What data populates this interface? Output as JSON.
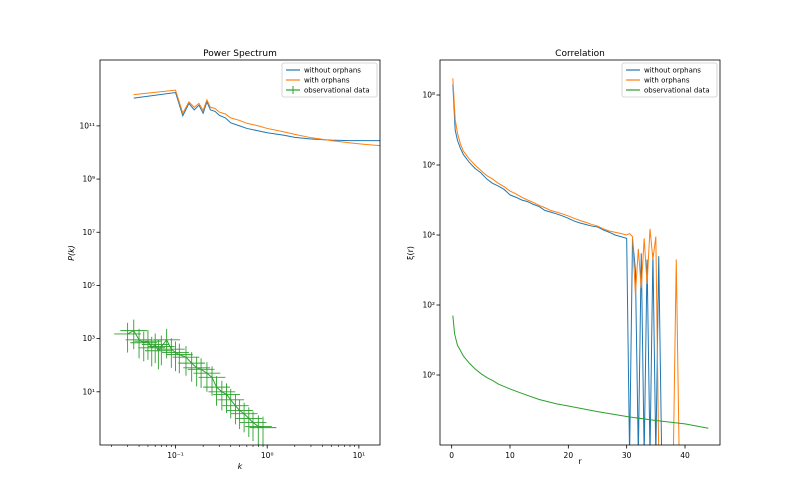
{
  "chart_data": [
    {
      "type": "line",
      "title": "Power Spectrum",
      "xlabel": "k",
      "ylabel": "P(k)",
      "xscale": "log",
      "yscale": "log",
      "xlim": [
        0.015,
        17
      ],
      "ylim": [
        0.1,
        30000000000000.0
      ],
      "x_ticks": [
        {
          "value": 0.1,
          "label": "10⁻¹"
        },
        {
          "value": 1,
          "label": "10⁰"
        },
        {
          "value": 10,
          "label": "10¹"
        }
      ],
      "y_ticks": [
        {
          "value": 10,
          "label": "10¹"
        },
        {
          "value": 1000,
          "label": "10³"
        },
        {
          "value": 100000,
          "label": "10⁵"
        },
        {
          "value": 10000000,
          "label": "10⁷"
        },
        {
          "value": 1000000000,
          "label": "10⁹"
        },
        {
          "value": 100000000000,
          "label": "10¹¹"
        }
      ],
      "legend": "top-right",
      "series": [
        {
          "name": "without orphans",
          "color": "#1f77b4",
          "x": [
            0.035,
            0.1,
            0.12,
            0.14,
            0.16,
            0.18,
            0.2,
            0.22,
            0.24,
            0.27,
            0.3,
            0.35,
            0.4,
            0.5,
            0.6,
            0.8,
            1,
            1.5,
            2,
            3,
            5,
            8,
            12,
            17
          ],
          "y": [
            1100000000000.0,
            1800000000000.0,
            240000000000.0,
            700000000000.0,
            400000000000.0,
            600000000000.0,
            300000000000.0,
            800000000000.0,
            400000000000.0,
            350000000000.0,
            250000000000.0,
            200000000000.0,
            130000000000.0,
            100000000000.0,
            80000000000.0,
            65000000000.0,
            55000000000.0,
            45000000000.0,
            37000000000.0,
            32000000000.0,
            29000000000.0,
            28000000000.0,
            28000000000.0,
            28000000000.0
          ]
        },
        {
          "name": "with orphans",
          "color": "#ff7f0e",
          "x": [
            0.035,
            0.1,
            0.12,
            0.14,
            0.16,
            0.18,
            0.2,
            0.22,
            0.24,
            0.27,
            0.3,
            0.35,
            0.4,
            0.5,
            0.6,
            0.8,
            1,
            1.5,
            2,
            3,
            5,
            8,
            12,
            17
          ],
          "y": [
            1500000000000.0,
            2200000000000.0,
            300000000000.0,
            800000000000.0,
            500000000000.0,
            700000000000.0,
            380000000000.0,
            950000000000.0,
            500000000000.0,
            450000000000.0,
            330000000000.0,
            280000000000.0,
            200000000000.0,
            160000000000.0,
            125000000000.0,
            100000000000.0,
            80000000000.0,
            60000000000.0,
            48000000000.0,
            36000000000.0,
            28000000000.0,
            23000000000.0,
            20000000000.0,
            18000000000.0
          ]
        },
        {
          "name": "observational data",
          "color": "#2ca02c",
          "errorbars": true,
          "x": [
            0.03,
            0.035,
            0.04,
            0.045,
            0.05,
            0.055,
            0.06,
            0.065,
            0.07,
            0.08,
            0.09,
            0.1,
            0.11,
            0.13,
            0.15,
            0.17,
            0.19,
            0.22,
            0.25,
            0.28,
            0.32,
            0.36,
            0.4,
            0.45,
            0.5,
            0.56,
            0.63,
            0.7,
            0.8,
            0.9
          ],
          "y": [
            1500,
            2000,
            900,
            700,
            800,
            450,
            600,
            350,
            500,
            900,
            400,
            300,
            250,
            200,
            120,
            80,
            70,
            50,
            35,
            15,
            10,
            8,
            5,
            3,
            2,
            1.5,
            1,
            0.7,
            0.5,
            0.45
          ],
          "xerr_rel": 0.4,
          "yerr_rel": 0.8
        }
      ]
    },
    {
      "type": "line",
      "title": "Correlation",
      "xlabel": "r",
      "ylabel": "ξ(r)",
      "xscale": "linear",
      "yscale": "log",
      "xlim": [
        -2,
        46
      ],
      "ylim": [
        0.01,
        1000000000.0
      ],
      "x_ticks": [
        {
          "value": 0,
          "label": "0"
        },
        {
          "value": 10,
          "label": "10"
        },
        {
          "value": 20,
          "label": "20"
        },
        {
          "value": 30,
          "label": "30"
        },
        {
          "value": 40,
          "label": "40"
        }
      ],
      "y_ticks": [
        {
          "value": 1,
          "label": "10⁰"
        },
        {
          "value": 100,
          "label": "10²"
        },
        {
          "value": 10000,
          "label": "10⁴"
        },
        {
          "value": 1000000,
          "label": "10⁶"
        },
        {
          "value": 100000000,
          "label": "10⁸"
        }
      ],
      "legend": "top-right",
      "series": [
        {
          "name": "without orphans",
          "color": "#1f77b4",
          "x": [
            0.2,
            0.6,
            1,
            1.5,
            2,
            3,
            4,
            5,
            6,
            7,
            8,
            9,
            10,
            11,
            12,
            13,
            14,
            15,
            16,
            17,
            18,
            19,
            20,
            21,
            22,
            23,
            24,
            25,
            26,
            27,
            28,
            29,
            30,
            30.5,
            31,
            31.5,
            32,
            32.5,
            33,
            33.5,
            34,
            34.5,
            35,
            35.5,
            36
          ],
          "y": [
            200000000,
            10000000,
            5000000,
            3000000,
            2000000,
            1200000,
            800000,
            600000,
            400000,
            300000,
            250000,
            200000,
            140000,
            120000,
            100000,
            90000,
            75000,
            65000,
            50000,
            45000,
            40000,
            35000,
            30000,
            25000,
            22000,
            20000,
            18000,
            17000,
            14000,
            12000,
            10000,
            9000,
            8000,
            0.005,
            8000,
            1000,
            0.005,
            3000,
            0.005,
            2000,
            0.005,
            3000,
            0.005,
            2500,
            0.005
          ]
        },
        {
          "name": "with orphans",
          "color": "#ff7f0e",
          "x": [
            0.2,
            0.6,
            1,
            1.5,
            2,
            3,
            4,
            5,
            6,
            7,
            8,
            9,
            10,
            11,
            12,
            13,
            14,
            15,
            16,
            17,
            18,
            19,
            20,
            21,
            22,
            23,
            24,
            25,
            26,
            27,
            28,
            29,
            30,
            30.5,
            31,
            31.5,
            32,
            32.5,
            33,
            33.5,
            34,
            34.5,
            35,
            35.5,
            36,
            38,
            38.5,
            39
          ],
          "y": [
            300000000,
            20000000,
            8000000,
            4000000,
            2500000,
            1500000,
            1000000,
            700000,
            500000,
            400000,
            300000,
            240000,
            180000,
            150000,
            120000,
            100000,
            85000,
            70000,
            60000,
            50000,
            45000,
            40000,
            35000,
            30000,
            26000,
            23000,
            20000,
            18000,
            15000,
            13000,
            12000,
            11000,
            10000,
            11000,
            9000,
            200,
            4000,
            300,
            8000,
            400,
            15000,
            2000,
            9000,
            0.005,
            0.005,
            0.005,
            2000,
            0.005
          ]
        },
        {
          "name": "observational data",
          "color": "#2ca02c",
          "x": [
            0.2,
            0.5,
            1,
            1.5,
            2,
            3,
            4,
            5,
            6,
            7,
            8,
            10,
            12,
            15,
            18,
            20,
            25,
            30,
            35,
            40,
            44
          ],
          "y": [
            50,
            15,
            7,
            5,
            3.5,
            2.2,
            1.5,
            1.1,
            0.85,
            0.7,
            0.55,
            0.4,
            0.3,
            0.2,
            0.15,
            0.13,
            0.09,
            0.065,
            0.05,
            0.04,
            0.03
          ]
        }
      ]
    }
  ]
}
